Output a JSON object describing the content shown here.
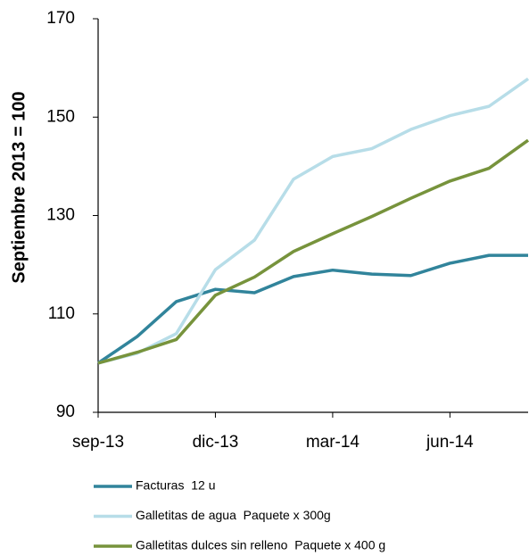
{
  "chart_data": {
    "type": "line",
    "y_label": "Septiembre  2013 = 100",
    "categories": [
      "sep-13",
      null,
      null,
      "dic-13",
      null,
      null,
      "mar-14",
      null,
      null,
      "jun-14",
      null,
      null
    ],
    "series": [
      {
        "name": "Facturas  12 u",
        "color": "#31849b",
        "values": [
          100,
          105.4,
          112.5,
          115,
          114.3,
          117.6,
          118.9,
          118.1,
          117.8,
          120.3,
          121.9,
          121.9
        ]
      },
      {
        "name": "Galletitas de agua  Paquete x 300g",
        "color": "#b7dde8",
        "values": [
          100,
          102,
          106,
          119,
          125,
          137.4,
          142,
          143.6,
          147.5,
          150.3,
          152.2,
          157.8
        ]
      },
      {
        "name": "Galletitas dulces sin relleno  Paquete x 400 g",
        "color": "#77933c",
        "values": [
          100,
          102.2,
          104.8,
          113.8,
          117.5,
          122.7,
          126.3,
          129.8,
          133.5,
          137,
          139.6,
          145.3
        ]
      }
    ],
    "ylim": [
      90,
      170
    ],
    "yticks": [
      90,
      110,
      130,
      150,
      170
    ],
    "grid": false
  }
}
